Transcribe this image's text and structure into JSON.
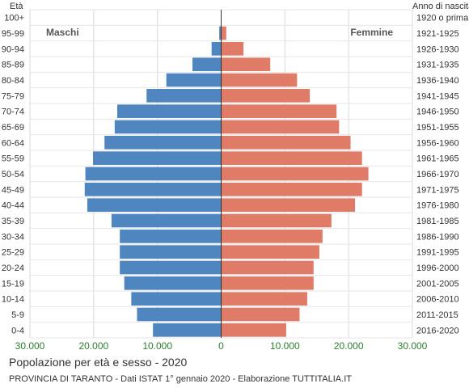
{
  "chart_data": {
    "type": "bar",
    "title": "Popolazione per età e sesso - 2020",
    "subtitle": "PROVINCIA DI TARANTO - Dati ISTAT 1° gennaio 2020 - Elaborazione TUTTITALIA.IT",
    "left_axis_header": "Età",
    "right_axis_header": "Anno di nascita",
    "categories": [
      "100+",
      "95-99",
      "90-94",
      "85-89",
      "80-84",
      "75-79",
      "70-74",
      "65-69",
      "60-64",
      "55-59",
      "50-54",
      "45-49",
      "40-44",
      "35-39",
      "30-34",
      "25-29",
      "20-24",
      "15-19",
      "10-14",
      "5-9",
      "0-4"
    ],
    "birth_years": [
      "1920 o prima",
      "1921-1925",
      "1926-1930",
      "1931-1935",
      "1936-1940",
      "1941-1945",
      "1946-1950",
      "1951-1955",
      "1956-1960",
      "1961-1965",
      "1966-1970",
      "1971-1975",
      "1976-1980",
      "1981-1985",
      "1986-1990",
      "1991-1995",
      "1996-2000",
      "2001-2005",
      "2006-2010",
      "2011-2015",
      "2016-2020"
    ],
    "series": [
      {
        "name": "Maschi",
        "color": "#4f86c0",
        "values": [
          10,
          300,
          1500,
          4500,
          8600,
          11700,
          16300,
          16700,
          18300,
          20100,
          21300,
          21400,
          21000,
          17200,
          15900,
          15900,
          15900,
          15200,
          14100,
          13200,
          10700
        ]
      },
      {
        "name": "Femmine",
        "color": "#e07b67",
        "values": [
          60,
          800,
          3500,
          7700,
          11900,
          13900,
          18100,
          18500,
          20300,
          22100,
          23100,
          22100,
          21000,
          17300,
          15900,
          15400,
          14500,
          14500,
          13500,
          12300,
          10200
        ]
      }
    ],
    "x_ticks": [
      "30.000",
      "20.000",
      "10.000",
      "0",
      "10.000",
      "20.000",
      "30.000"
    ],
    "xlim": [
      -30000,
      30000
    ],
    "grid": true
  }
}
